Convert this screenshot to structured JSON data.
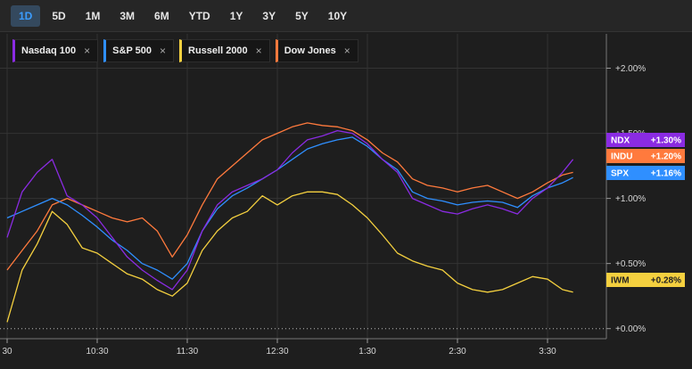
{
  "range_buttons": [
    {
      "label": "1D",
      "active": true
    },
    {
      "label": "5D",
      "active": false
    },
    {
      "label": "1M",
      "active": false
    },
    {
      "label": "3M",
      "active": false
    },
    {
      "label": "6M",
      "active": false
    },
    {
      "label": "YTD",
      "active": false
    },
    {
      "label": "1Y",
      "active": false
    },
    {
      "label": "3Y",
      "active": false
    },
    {
      "label": "5Y",
      "active": false
    },
    {
      "label": "10Y",
      "active": false
    }
  ],
  "legend": [
    {
      "name": "Nasdaq 100",
      "color": "#8a2be2",
      "close": "×"
    },
    {
      "name": "S&P 500",
      "color": "#2f8fff",
      "close": "×"
    },
    {
      "name": "Russell 2000",
      "color": "#f4d03f",
      "close": "×"
    },
    {
      "name": "Dow Jones",
      "color": "#ff7a3d",
      "close": "×"
    }
  ],
  "chart_data": {
    "type": "line",
    "x_unit": "time of day",
    "y_unit": "% change",
    "x_range": [
      "9:30",
      "3:47"
    ],
    "ylim": [
      -0.05,
      2.25
    ],
    "y_ticks": [
      {
        "value": 2.0,
        "label": "+2.00%"
      },
      {
        "value": 1.5,
        "label": "+1.50%"
      },
      {
        "value": 1.0,
        "label": "+1.00%"
      },
      {
        "value": 0.5,
        "label": "+0.50%"
      },
      {
        "value": 0.0,
        "label": "+0.00%"
      }
    ],
    "x_ticks": [
      {
        "value": "9:30",
        "label": "30"
      },
      {
        "value": "10:30",
        "label": "10:30"
      },
      {
        "value": "11:30",
        "label": "11:30"
      },
      {
        "value": "12:30",
        "label": "12:30"
      },
      {
        "value": "1:30",
        "label": "1:30"
      },
      {
        "value": "2:30",
        "label": "2:30"
      },
      {
        "value": "3:30",
        "label": "3:30"
      }
    ],
    "grid": true,
    "baseline": 0.0,
    "series": [
      {
        "name": "Nasdaq 100",
        "ticker": "NDX",
        "last_label": "+1.30%",
        "color": "#8a2be2",
        "points": [
          [
            "9:30",
            0.7
          ],
          [
            "9:40",
            1.05
          ],
          [
            "9:50",
            1.2
          ],
          [
            "10:00",
            1.3
          ],
          [
            "10:10",
            1.02
          ],
          [
            "10:20",
            0.95
          ],
          [
            "10:30",
            0.85
          ],
          [
            "10:40",
            0.7
          ],
          [
            "10:50",
            0.55
          ],
          [
            "11:00",
            0.45
          ],
          [
            "11:10",
            0.37
          ],
          [
            "11:20",
            0.3
          ],
          [
            "11:30",
            0.45
          ],
          [
            "11:40",
            0.75
          ],
          [
            "11:50",
            0.95
          ],
          [
            "12:00",
            1.05
          ],
          [
            "12:10",
            1.1
          ],
          [
            "12:20",
            1.15
          ],
          [
            "12:30",
            1.22
          ],
          [
            "12:40",
            1.35
          ],
          [
            "12:50",
            1.45
          ],
          [
            "1:00",
            1.48
          ],
          [
            "1:10",
            1.52
          ],
          [
            "1:20",
            1.5
          ],
          [
            "1:30",
            1.42
          ],
          [
            "1:40",
            1.3
          ],
          [
            "1:50",
            1.2
          ],
          [
            "2:00",
            1.0
          ],
          [
            "2:10",
            0.95
          ],
          [
            "2:20",
            0.9
          ],
          [
            "2:30",
            0.88
          ],
          [
            "2:40",
            0.92
          ],
          [
            "2:50",
            0.95
          ],
          [
            "3:00",
            0.92
          ],
          [
            "3:10",
            0.88
          ],
          [
            "3:20",
            1.0
          ],
          [
            "3:30",
            1.08
          ],
          [
            "3:40",
            1.2
          ],
          [
            "3:47",
            1.3
          ]
        ]
      },
      {
        "name": "S&P 500",
        "ticker": "SPX",
        "last_label": "+1.16%",
        "color": "#2f8fff",
        "points": [
          [
            "9:30",
            0.85
          ],
          [
            "9:40",
            0.9
          ],
          [
            "9:50",
            0.95
          ],
          [
            "10:00",
            1.0
          ],
          [
            "10:10",
            0.95
          ],
          [
            "10:20",
            0.87
          ],
          [
            "10:30",
            0.78
          ],
          [
            "10:40",
            0.68
          ],
          [
            "10:50",
            0.6
          ],
          [
            "11:00",
            0.5
          ],
          [
            "11:10",
            0.45
          ],
          [
            "11:20",
            0.38
          ],
          [
            "11:30",
            0.5
          ],
          [
            "11:40",
            0.75
          ],
          [
            "11:50",
            0.92
          ],
          [
            "12:00",
            1.02
          ],
          [
            "12:10",
            1.08
          ],
          [
            "12:20",
            1.15
          ],
          [
            "12:30",
            1.22
          ],
          [
            "12:40",
            1.3
          ],
          [
            "12:50",
            1.38
          ],
          [
            "1:00",
            1.42
          ],
          [
            "1:10",
            1.45
          ],
          [
            "1:20",
            1.47
          ],
          [
            "1:30",
            1.4
          ],
          [
            "1:40",
            1.3
          ],
          [
            "1:50",
            1.22
          ],
          [
            "2:00",
            1.05
          ],
          [
            "2:10",
            1.0
          ],
          [
            "2:20",
            0.98
          ],
          [
            "2:30",
            0.95
          ],
          [
            "2:40",
            0.97
          ],
          [
            "2:50",
            0.98
          ],
          [
            "3:00",
            0.97
          ],
          [
            "3:10",
            0.93
          ],
          [
            "3:20",
            1.02
          ],
          [
            "3:30",
            1.08
          ],
          [
            "3:40",
            1.12
          ],
          [
            "3:47",
            1.16
          ]
        ]
      },
      {
        "name": "Russell 2000",
        "ticker": "IWM",
        "last_label": "+0.28%",
        "color": "#f4d03f",
        "points": [
          [
            "9:30",
            0.05
          ],
          [
            "9:40",
            0.45
          ],
          [
            "9:50",
            0.65
          ],
          [
            "10:00",
            0.9
          ],
          [
            "10:10",
            0.8
          ],
          [
            "10:20",
            0.62
          ],
          [
            "10:30",
            0.58
          ],
          [
            "10:40",
            0.5
          ],
          [
            "10:50",
            0.42
          ],
          [
            "11:00",
            0.38
          ],
          [
            "11:10",
            0.3
          ],
          [
            "11:20",
            0.25
          ],
          [
            "11:30",
            0.35
          ],
          [
            "11:40",
            0.6
          ],
          [
            "11:50",
            0.75
          ],
          [
            "12:00",
            0.85
          ],
          [
            "12:10",
            0.9
          ],
          [
            "12:20",
            1.02
          ],
          [
            "12:30",
            0.95
          ],
          [
            "12:40",
            1.02
          ],
          [
            "12:50",
            1.05
          ],
          [
            "1:00",
            1.05
          ],
          [
            "1:10",
            1.03
          ],
          [
            "1:20",
            0.95
          ],
          [
            "1:30",
            0.85
          ],
          [
            "1:40",
            0.72
          ],
          [
            "1:50",
            0.58
          ],
          [
            "2:00",
            0.52
          ],
          [
            "2:10",
            0.48
          ],
          [
            "2:20",
            0.45
          ],
          [
            "2:30",
            0.35
          ],
          [
            "2:40",
            0.3
          ],
          [
            "2:50",
            0.28
          ],
          [
            "3:00",
            0.3
          ],
          [
            "3:10",
            0.35
          ],
          [
            "3:20",
            0.4
          ],
          [
            "3:30",
            0.38
          ],
          [
            "3:40",
            0.3
          ],
          [
            "3:47",
            0.28
          ]
        ]
      },
      {
        "name": "Dow Jones",
        "ticker": "INDU",
        "last_label": "+1.20%",
        "color": "#ff7a3d",
        "points": [
          [
            "9:30",
            0.45
          ],
          [
            "9:40",
            0.6
          ],
          [
            "9:50",
            0.75
          ],
          [
            "10:00",
            0.95
          ],
          [
            "10:10",
            1.0
          ],
          [
            "10:20",
            0.95
          ],
          [
            "10:30",
            0.9
          ],
          [
            "10:40",
            0.85
          ],
          [
            "10:50",
            0.82
          ],
          [
            "11:00",
            0.85
          ],
          [
            "11:10",
            0.75
          ],
          [
            "11:20",
            0.55
          ],
          [
            "11:30",
            0.72
          ],
          [
            "11:40",
            0.95
          ],
          [
            "11:50",
            1.15
          ],
          [
            "12:00",
            1.25
          ],
          [
            "12:10",
            1.35
          ],
          [
            "12:20",
            1.45
          ],
          [
            "12:30",
            1.5
          ],
          [
            "12:40",
            1.55
          ],
          [
            "12:50",
            1.58
          ],
          [
            "1:00",
            1.56
          ],
          [
            "1:10",
            1.55
          ],
          [
            "1:20",
            1.52
          ],
          [
            "1:30",
            1.45
          ],
          [
            "1:40",
            1.35
          ],
          [
            "1:50",
            1.28
          ],
          [
            "2:00",
            1.15
          ],
          [
            "2:10",
            1.1
          ],
          [
            "2:20",
            1.08
          ],
          [
            "2:30",
            1.05
          ],
          [
            "2:40",
            1.08
          ],
          [
            "2:50",
            1.1
          ],
          [
            "3:00",
            1.05
          ],
          [
            "3:10",
            1.0
          ],
          [
            "3:20",
            1.05
          ],
          [
            "3:30",
            1.12
          ],
          [
            "3:40",
            1.18
          ],
          [
            "3:47",
            1.2
          ]
        ]
      }
    ]
  }
}
